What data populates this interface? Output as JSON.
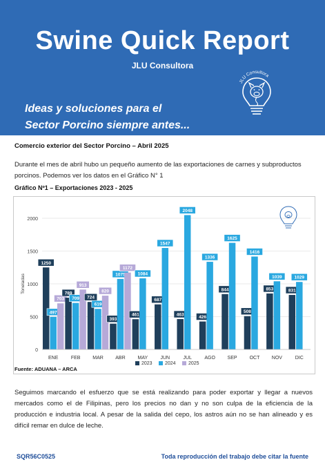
{
  "header": {
    "title": "Swine Quick Report",
    "subtitle": "JLU Consultora",
    "tagline_line1": "Ideas y soluciones para el",
    "tagline_line2": "Sector Porcino siempre antes...",
    "logo_text": "JLU Consultora",
    "brand_color": "#2f6bb5"
  },
  "section": {
    "title": "Comercio exterior del Sector Porcino – Abril 2025",
    "paragraph1": "Durante el mes de abril hubo un pequeño aumento de las exportaciones de carnes y subproductos porcinos. Podemos ver los datos en el Gráfico N° 1",
    "chart_title": "Gráfico Nº1 – Exportaciones 2023 - 2025",
    "source": "Fuente: ADUANA – ARCA",
    "paragraph2": "Seguimos marcando el esfuerzo que se está realizando para poder exportar y llegar a nuevos mercados como el de Filipinas, pero los precios no dan y no son culpa de la eficiencia de la producción e industria local. A pesar de la salida del cepo, los astros aún no se han alineado y es difícil remar en dulce de leche."
  },
  "footer": {
    "code": "SQR56C0525",
    "note": "Toda reproducción del trabajo debe citar la fuente"
  },
  "chart_data": {
    "type": "bar",
    "title": "",
    "ylabel": "Toneladas",
    "xlabel": "",
    "ylim": [
      0,
      2000
    ],
    "yticks": [
      0,
      500,
      1000,
      1500,
      2000
    ],
    "grid": true,
    "legend_position": "bottom",
    "categories": [
      "ENE",
      "FEB",
      "MAR",
      "ABR",
      "MAY",
      "JUN",
      "JUL",
      "AGO",
      "SEP",
      "OCT",
      "NOV",
      "DIC"
    ],
    "series": [
      {
        "name": "2023",
        "color": "#1f3f5b",
        "values": [
          1250,
          789,
          724,
          393,
          461,
          687,
          463,
          426,
          844,
          508,
          853,
          831
        ]
      },
      {
        "name": "2024",
        "color": "#2aa8e0",
        "values": [
          497,
          709,
          619,
          1075,
          1084,
          1547,
          2048,
          1336,
          1625,
          1416,
          1039,
          1029
        ]
      },
      {
        "name": "2025",
        "color": "#b6a9d8",
        "values": [
          703,
          913,
          820,
          1172,
          null,
          null,
          null,
          null,
          null,
          null,
          null,
          null
        ]
      }
    ]
  }
}
